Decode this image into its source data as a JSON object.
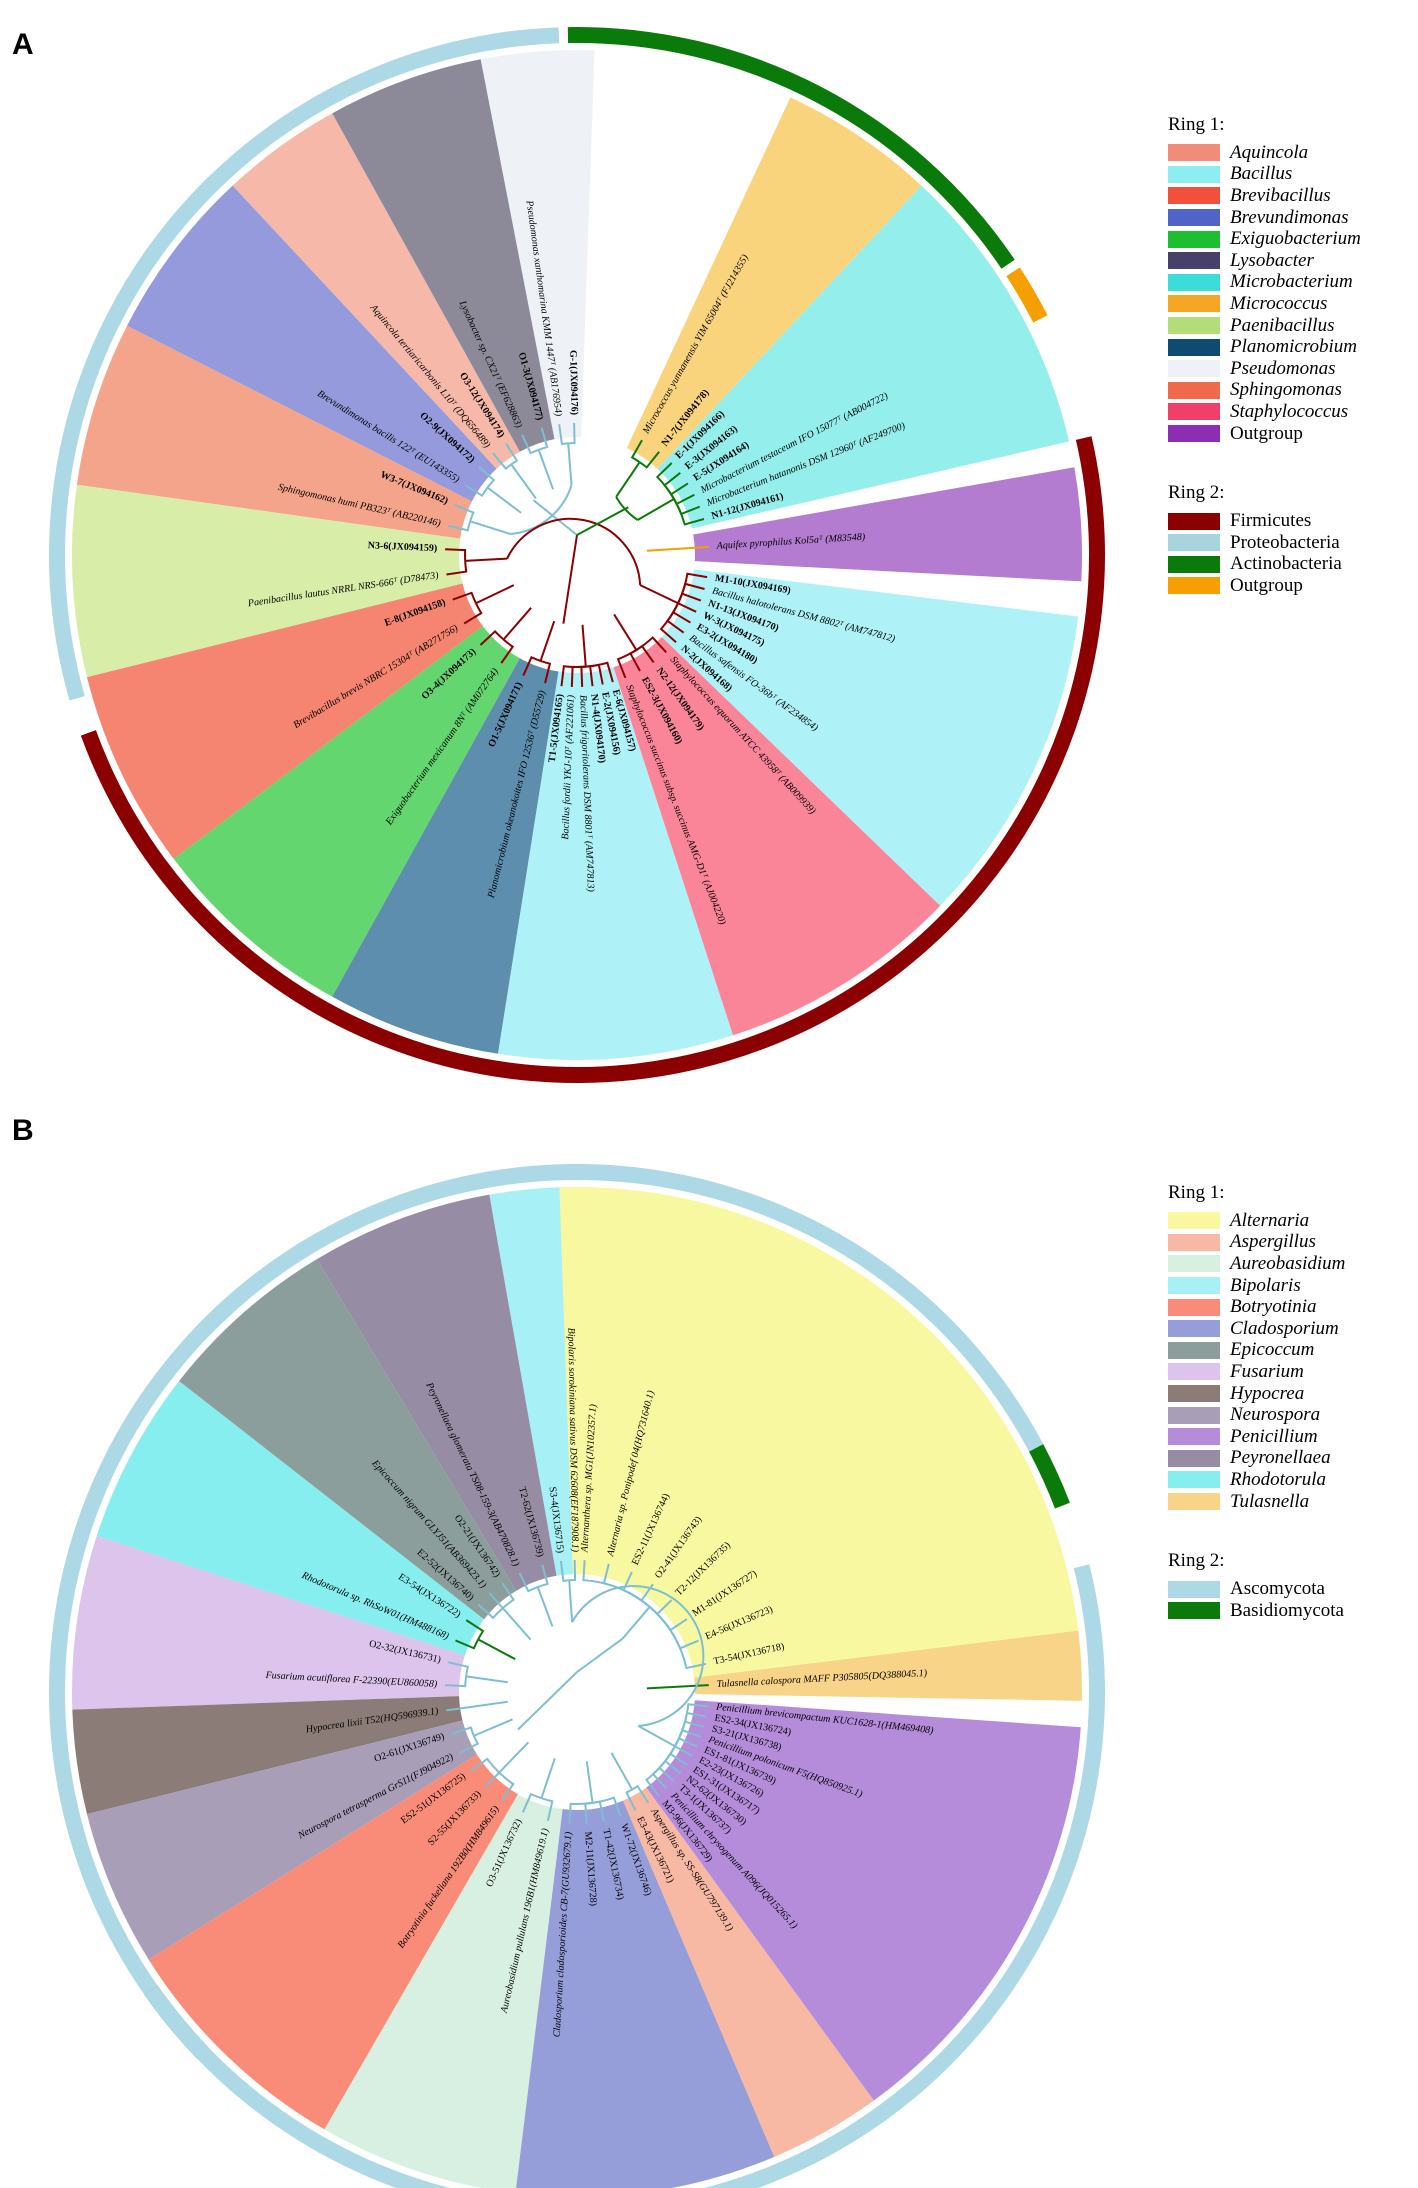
{
  "panelA": {
    "letter": "A",
    "ring1Title": "Ring 1:",
    "ring1": [
      {
        "name": "Aquincola",
        "color": "#F08C78",
        "italic": true
      },
      {
        "name": "Bacillus",
        "color": "#8CEEF0",
        "italic": true
      },
      {
        "name": "Brevibacillus",
        "color": "#F0503C",
        "italic": true
      },
      {
        "name": "Brevundimonas",
        "color": "#5064C8",
        "italic": true
      },
      {
        "name": "Exiguobacterium",
        "color": "#1EBE32",
        "italic": true
      },
      {
        "name": "Lysobacter",
        "color": "#46406A",
        "italic": true
      },
      {
        "name": "Microbacterium",
        "color": "#3CDCD8",
        "italic": true
      },
      {
        "name": "Micrococcus",
        "color": "#F5A623",
        "italic": true
      },
      {
        "name": "Paenibacillus",
        "color": "#B4DC78",
        "italic": true
      },
      {
        "name": "Planomicrobium",
        "color": "#0E4A72",
        "italic": true
      },
      {
        "name": "Pseudomonas",
        "color": "#EEF2F6",
        "italic": true
      },
      {
        "name": "Sphingomonas",
        "color": "#EE6A4A",
        "italic": true
      },
      {
        "name": "Staphylococcus",
        "color": "#F0406A",
        "italic": true
      },
      {
        "name": "Outgroup",
        "color": "#8C2DB4",
        "italic": false
      }
    ],
    "ring2Title": "Ring 2:",
    "ring2": [
      {
        "name": "Firmicutes",
        "color": "#8B0000"
      },
      {
        "name": "Proteobacteria",
        "color": "#A8D4E0"
      },
      {
        "name": "Actinobacteria",
        "color": "#0A7A0A"
      },
      {
        "name": "Outgroup",
        "color": "#F5A000"
      }
    ],
    "sectors": [
      {
        "genus": "Pseudomonas",
        "color": "#EEF2F6",
        "leaves": [
          {
            "label": "Pseudomonas xanthomarina KMM 1447ᵀ (AB176954)",
            "bold": false,
            "italic": true
          },
          {
            "label": "G-1(JX094176)",
            "bold": true,
            "italic": false
          }
        ]
      },
      {
        "genus": "Lysobacter",
        "color": "#8C8A98",
        "leaves": [
          {
            "label": "Lysobacter sp. CX21ᵀ (EF628863)",
            "bold": false,
            "italic": true
          },
          {
            "label": "O1-3(JX094177)",
            "bold": true,
            "italic": false
          }
        ]
      },
      {
        "genus": "Aquincola",
        "color": "#F6B8A8",
        "leaves": [
          {
            "label": "Aquincola tertiaricarbonis L10ᵀ (DQ656489)",
            "bold": false,
            "italic": true
          },
          {
            "label": "O3-12(JX094174)",
            "bold": true,
            "italic": false
          }
        ]
      },
      {
        "genus": "Brevundimonas",
        "color": "#949ADC",
        "leaves": [
          {
            "label": "Brevundimonas bacilis 122ᵀ (EU143355)",
            "bold": false,
            "italic": true
          },
          {
            "label": "O2-9(JX094172)",
            "bold": true,
            "italic": false
          }
        ]
      },
      {
        "genus": "Sphingomonas",
        "color": "#F4A48A",
        "leaves": [
          {
            "label": "Sphingomonas humi PB323ᵀ (AB220146)",
            "bold": false,
            "italic": true
          },
          {
            "label": "W3-7(JX094162)",
            "bold": true,
            "italic": false
          }
        ]
      },
      {
        "genus": "Paenibacillus",
        "color": "#D8EEA8",
        "leaves": [
          {
            "label": "Paenibacillus lautus NRRL NRS-666ᵀ (D78473)",
            "bold": false,
            "italic": true
          },
          {
            "label": "N3-6(JX094159)",
            "bold": true,
            "italic": false
          }
        ]
      },
      {
        "genus": "Brevibacillus",
        "color": "#F58470",
        "leaves": [
          {
            "label": "Brevibacillus brevis NBRC 15304ᵀ (AB271756)",
            "bold": false,
            "italic": true
          },
          {
            "label": "E-8(JX094158)",
            "bold": true,
            "italic": false
          }
        ]
      },
      {
        "genus": "Exiguobacterium",
        "color": "#64D670",
        "leaves": [
          {
            "label": "Exiguobacterium mexicanum 8Nᵀ (AM072764)",
            "bold": false,
            "italic": true
          },
          {
            "label": "O3-4(JX094173)",
            "bold": true,
            "italic": false
          }
        ]
      },
      {
        "genus": "Planomicrobium",
        "color": "#5E8EAE",
        "leaves": [
          {
            "label": "Planomicrobium okeanokoites IFO 12536ᵀ (D55729)",
            "bold": false,
            "italic": true
          },
          {
            "label": "O1-5(JX094171)",
            "bold": true,
            "italic": false
          }
        ]
      },
      {
        "genus": "Bacillus",
        "color": "#AEF2F8",
        "leaves": [
          {
            "label": "E-6(JX094157)",
            "bold": true,
            "italic": false
          },
          {
            "label": "E-2(JX094156)",
            "bold": true,
            "italic": false
          },
          {
            "label": "N1-4(JX094170)",
            "bold": true,
            "italic": false
          },
          {
            "label": "Bacillus frigoritolerans DSM 8801ᵀ (AM747813)",
            "bold": false,
            "italic": true
          },
          {
            "label": "Bacillus fordii YKJ-10ᵀ (AF221061)",
            "bold": false,
            "italic": true
          },
          {
            "label": "T1-5(JX094165)",
            "bold": true,
            "italic": false
          }
        ]
      },
      {
        "genus": "Staphylococcus",
        "color": "#FA8498",
        "leaves": [
          {
            "label": "Staphylococcus equorum ATCC 43958ᵀ (AB009939)",
            "bold": false,
            "italic": true
          },
          {
            "label": "N2-12(JX094179)",
            "bold": true,
            "italic": false
          },
          {
            "label": "ES2-3(JX094160)",
            "bold": true,
            "italic": false
          },
          {
            "label": "Staphylococcus succinus subsp. succinus AMG-D1ᵀ (AJ004220)",
            "bold": false,
            "italic": true
          }
        ]
      },
      {
        "genus": "Bacillus",
        "color": "#AEF2F8",
        "leaves": [
          {
            "label": "M1-10(JX094169)",
            "bold": true,
            "italic": false
          },
          {
            "label": "Bacillus halotolerans DSM 8802ᵀ (AM747812)",
            "bold": false,
            "italic": true
          },
          {
            "label": "N1-13(JX094170)",
            "bold": true,
            "italic": false
          },
          {
            "label": "W-3(JX094175)",
            "bold": true,
            "italic": false
          },
          {
            "label": "E3-2(JX094180)",
            "bold": true,
            "italic": false
          },
          {
            "label": "Bacillus safensis FO-36bᵀ (AF234854)",
            "bold": false,
            "italic": true
          },
          {
            "label": "N-2(JX094168)",
            "bold": true,
            "italic": false
          }
        ]
      },
      {
        "genus": "Outgroup",
        "color": "#B47CD0",
        "leaves": [
          {
            "label": "Aquifex pyrophilus Kol5aᵀ (M83548)",
            "bold": false,
            "italic": true
          }
        ]
      },
      {
        "genus": "Microbacterium",
        "color": "#94EEEC",
        "leaves": [
          {
            "label": "E-1(JX094166)",
            "bold": true,
            "italic": false
          },
          {
            "label": "E-3(JX094163)",
            "bold": true,
            "italic": false
          },
          {
            "label": "E-5(JX094164)",
            "bold": true,
            "italic": false
          },
          {
            "label": "Microbacterium testaceum IFO 15077ᵀ (AB004722)",
            "bold": false,
            "italic": true
          },
          {
            "label": "Microbacterium hatanonis DSM 12960ᵀ (AF249700)",
            "bold": false,
            "italic": true
          },
          {
            "label": "N1-12(JX094161)",
            "bold": true,
            "italic": false
          }
        ]
      },
      {
        "genus": "Micrococcus",
        "color": "#FAD47C",
        "leaves": [
          {
            "label": "Micrococcus yunnanensis YIM 65004ᵀ (FJ214355)",
            "bold": false,
            "italic": true
          },
          {
            "label": "N1-7(JX094178)",
            "bold": true,
            "italic": false
          }
        ]
      }
    ]
  },
  "panelB": {
    "letter": "B",
    "ring1Title": "Ring 1:",
    "ring1": [
      {
        "name": "Alternaria",
        "color": "#F8F8A0",
        "italic": true
      },
      {
        "name": "Aspergillus",
        "color": "#F7B8A4",
        "italic": true
      },
      {
        "name": "Aureobasidium",
        "color": "#D8F0E2",
        "italic": true
      },
      {
        "name": "Bipolaris",
        "color": "#A6F0F6",
        "italic": true
      },
      {
        "name": "Botryotinia",
        "color": "#F88C78",
        "italic": true
      },
      {
        "name": "Cladosporium",
        "color": "#969EDA",
        "italic": true
      },
      {
        "name": "Epicoccum",
        "color": "#8C9E9C",
        "italic": true
      },
      {
        "name": "Fusarium",
        "color": "#DCC4EC",
        "italic": true
      },
      {
        "name": "Hypocrea",
        "color": "#8C7C78",
        "italic": true
      },
      {
        "name": "Neurospora",
        "color": "#A89EB8",
        "italic": true
      },
      {
        "name": "Penicillium",
        "color": "#B48CDA",
        "italic": true
      },
      {
        "name": "Peyronellaea",
        "color": "#968CA4",
        "italic": true
      },
      {
        "name": "Rhodotorula",
        "color": "#86EEEE",
        "italic": true
      },
      {
        "name": "Tulasnella",
        "color": "#F8D488",
        "italic": true
      }
    ],
    "ring2Title": "Ring 2:",
    "ring2": [
      {
        "name": "Ascomycota",
        "color": "#ADD8E6"
      },
      {
        "name": "Basidiomycota",
        "color": "#0A7A0A"
      }
    ],
    "sectors": [
      {
        "genus": "Bipolaris",
        "color": "#A6F0F6",
        "leaves": [
          {
            "label": "S3-4(JX136715)",
            "bold": false,
            "italic": false
          },
          {
            "label": "Bipolaris sorokiniana sativus DSM 62608(EF187908.1)",
            "bold": false,
            "italic": true
          }
        ]
      },
      {
        "genus": "Peyronellaea",
        "color": "#968CA4",
        "leaves": [
          {
            "label": "Peyronellaea glomerata TS08-159-3(AB470828.1)",
            "bold": false,
            "italic": true
          },
          {
            "label": "T2-62(JX136739)",
            "bold": false,
            "italic": false
          }
        ]
      },
      {
        "genus": "Epicoccum",
        "color": "#8C9E9C",
        "leaves": [
          {
            "label": "E2-52(JX136740)",
            "bold": false,
            "italic": false
          },
          {
            "label": "Epicoccum nigrum GLYJ51(AB369423.1)",
            "bold": false,
            "italic": true
          },
          {
            "label": "O2-21(JX136742)",
            "bold": false,
            "italic": false
          }
        ]
      },
      {
        "genus": "Rhodotorula",
        "color": "#86EEEE",
        "leaves": [
          {
            "label": "Rhodotorula sp. RhSoW01(HM488168)",
            "bold": false,
            "italic": true
          },
          {
            "label": "E3-54(JX136722)",
            "bold": false,
            "italic": false
          }
        ]
      },
      {
        "genus": "Fusarium",
        "color": "#DCC4EC",
        "leaves": [
          {
            "label": "Fusarium acutiflorea F-22390(EU860058)",
            "bold": false,
            "italic": true
          },
          {
            "label": "O2-32(JX136731)",
            "bold": false,
            "italic": false
          }
        ]
      },
      {
        "genus": "Hypocrea",
        "color": "#8C7C78",
        "leaves": [
          {
            "label": "Hypocrea lixii T52(HQ596939.1)",
            "bold": false,
            "italic": true
          }
        ]
      },
      {
        "genus": "Neurospora",
        "color": "#A89EB8",
        "leaves": [
          {
            "label": "Neurospora tetrasperma GrS11(FJ904922)",
            "bold": false,
            "italic": true
          },
          {
            "label": "O2-61(JX136749)",
            "bold": false,
            "italic": false
          }
        ]
      },
      {
        "genus": "Botryotinia",
        "color": "#F88C78",
        "leaves": [
          {
            "label": "Botryotinia fuckeliana 192B0(HM849615)",
            "bold": false,
            "italic": true
          },
          {
            "label": "S2-55(JX136733)",
            "bold": false,
            "italic": false
          },
          {
            "label": "ES2-51(JX136725)",
            "bold": false,
            "italic": false
          }
        ]
      },
      {
        "genus": "Aureobasidium",
        "color": "#D8F0E2",
        "leaves": [
          {
            "label": "Aureobasidium pullulans 196B1(HM849619.1)",
            "bold": false,
            "italic": true
          },
          {
            "label": "O3-51(JX136732)",
            "bold": false,
            "italic": false
          }
        ]
      },
      {
        "genus": "Cladosporium",
        "color": "#969EDA",
        "leaves": [
          {
            "label": "W1-72(JX136746)",
            "bold": false,
            "italic": false
          },
          {
            "label": "T1-42(JX136734)",
            "bold": false,
            "italic": false
          },
          {
            "label": "M2-11(JX136728)",
            "bold": false,
            "italic": false
          },
          {
            "label": "Cladosporium cladosporioides CB-7(GU932679.1)",
            "bold": false,
            "italic": true
          }
        ]
      },
      {
        "genus": "Aspergillus",
        "color": "#F7B8A4",
        "leaves": [
          {
            "label": "Aspergillus sp. SS-S8(GU797139.1)",
            "bold": false,
            "italic": true
          },
          {
            "label": "E3-43(JX136721)",
            "bold": false,
            "italic": false
          }
        ]
      },
      {
        "genus": "Penicillium",
        "color": "#B48CDA",
        "leaves": [
          {
            "label": "Penicillium brevicompactum KUC1628-1(HM469408)",
            "bold": false,
            "italic": true
          },
          {
            "label": "ES2-34(JX136724)",
            "bold": false,
            "italic": false
          },
          {
            "label": "S3-21(JX136738)",
            "bold": false,
            "italic": false
          },
          {
            "label": "Penicillium polonicum F5(HQ850925.1)",
            "bold": false,
            "italic": true
          },
          {
            "label": "ES1-81(JX136739)",
            "bold": false,
            "italic": false
          },
          {
            "label": "E2-23(JX136726)",
            "bold": false,
            "italic": false
          },
          {
            "label": "ES1-31(JX136717)",
            "bold": false,
            "italic": false
          },
          {
            "label": "N2-62(JX136730)",
            "bold": false,
            "italic": false
          },
          {
            "label": "T3-1(JX136737)",
            "bold": false,
            "italic": false
          },
          {
            "label": "Penicillium chrysogenum A096(JQ015265.1)",
            "bold": false,
            "italic": true
          },
          {
            "label": "M3-96(JX136729)",
            "bold": false,
            "italic": false
          }
        ]
      },
      {
        "genus": "Tulasnella",
        "color": "#F8D488",
        "leaves": [
          {
            "label": "Tulasnella calospora MAFF P305805(DQ388045.1)",
            "bold": false,
            "italic": true
          }
        ]
      },
      {
        "genus": "Alternaria",
        "color": "#F8F8A0",
        "leaves": [
          {
            "label": "Alternanthera sp. MG1(JN102357.1)",
            "bold": false,
            "italic": true
          },
          {
            "label": "Alternaria sp. Ponipodef 04(HQ731640.1)",
            "bold": false,
            "italic": true
          },
          {
            "label": "ES2-11(JX136744)",
            "bold": false,
            "italic": false
          },
          {
            "label": "O2-41(JX136743)",
            "bold": false,
            "italic": false
          },
          {
            "label": "T2-12(JX136735)",
            "bold": false,
            "italic": false
          },
          {
            "label": "M1-81(JX136727)",
            "bold": false,
            "italic": false
          },
          {
            "label": "E4-56(JX136723)",
            "bold": false,
            "italic": false
          },
          {
            "label": "T3-54(JX136718)",
            "bold": false,
            "italic": false
          }
        ]
      }
    ]
  }
}
